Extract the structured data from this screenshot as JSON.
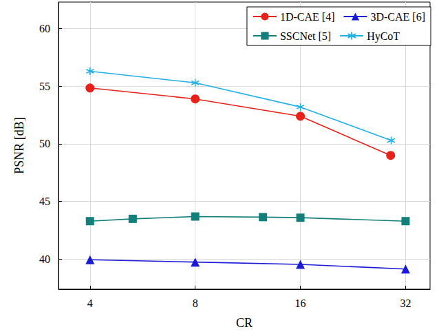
{
  "chart_data": {
    "type": "line",
    "x_label": "CR",
    "y_label": "PSNR [dB]",
    "log": "x",
    "xlim": [
      3.25,
      37.6
    ],
    "xticks": [
      4,
      8,
      16,
      32
    ],
    "ylim": [
      37.4,
      62.3
    ],
    "yticks": [
      40,
      45,
      50,
      55,
      60
    ],
    "grid": true,
    "legend": "top-right",
    "series": [
      {
        "name": "1D-CAE [4]",
        "color": "#e8211b",
        "marker": "circle",
        "x": [
          4,
          8,
          16,
          29
        ],
        "values": [
          54.85,
          53.9,
          52.4,
          49.0
        ]
      },
      {
        "name": "3D-CAE [6]",
        "color": "#1a1ad6",
        "marker": "triangle",
        "x": [
          4,
          8,
          16,
          32
        ],
        "values": [
          39.95,
          39.75,
          39.55,
          39.15
        ]
      },
      {
        "name": "SSCNet [5]",
        "color": "#137f7b",
        "marker": "square",
        "x": [
          4,
          5.3,
          8,
          12.5,
          16,
          32
        ],
        "values": [
          43.3,
          43.5,
          43.7,
          43.65,
          43.6,
          43.3
        ]
      },
      {
        "name": "HyCoT",
        "color": "#22b0e6",
        "marker": "asterisk",
        "x": [
          4,
          8,
          16,
          29.1
        ],
        "values": [
          56.3,
          55.3,
          53.2,
          50.3
        ]
      }
    ]
  }
}
